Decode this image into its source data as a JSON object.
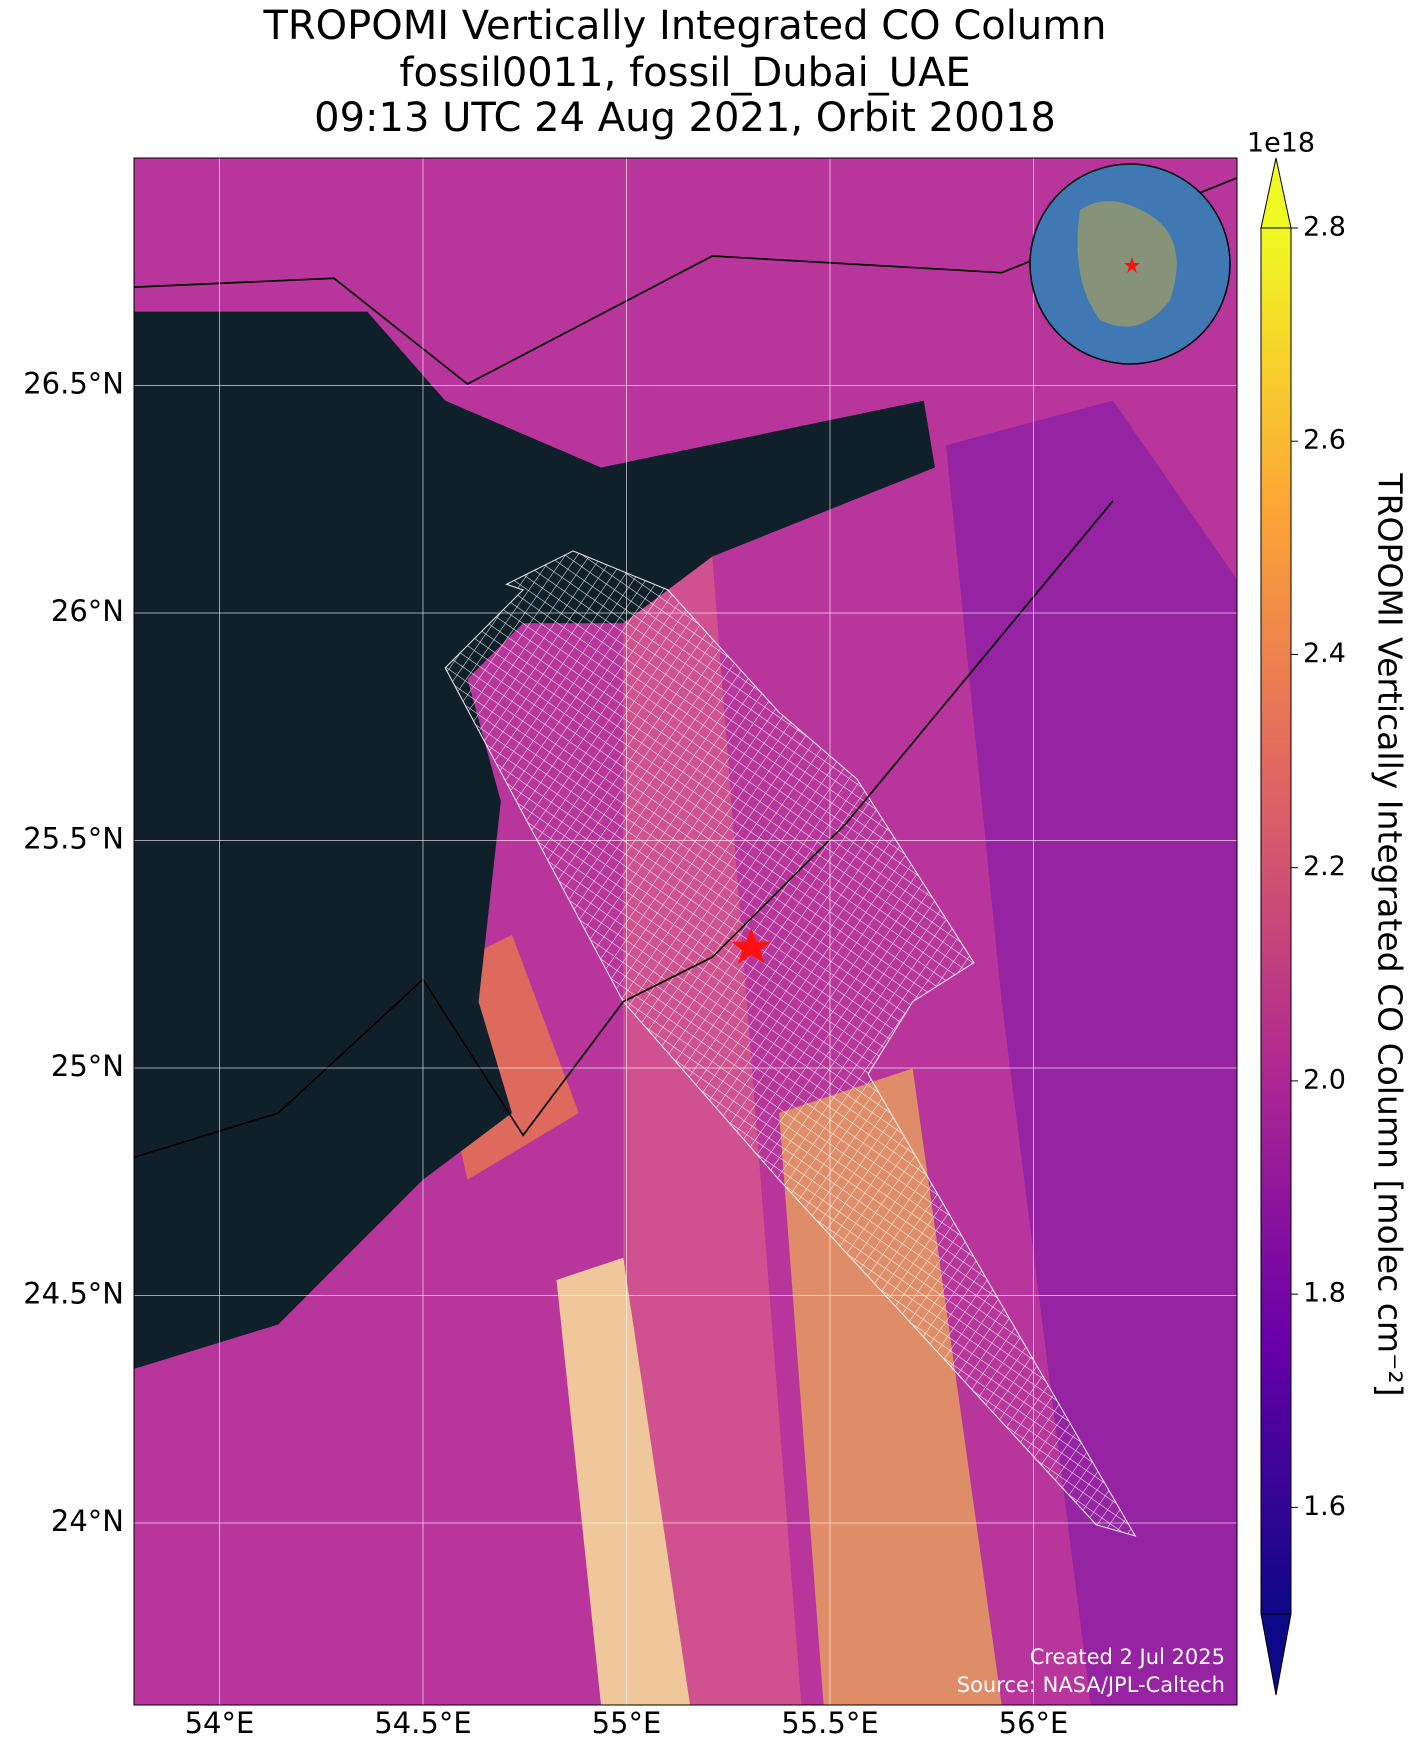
{
  "chart_data": {
    "type": "map",
    "title": [
      "TROPOMI Vertically Integrated CO Column",
      "fossil0011, fossil_Dubai_UAE",
      "09:13 UTC 24 Aug 2021, Orbit 20018"
    ],
    "xlim": [
      53.79,
      56.5
    ],
    "ylim": [
      23.6,
      27.0
    ],
    "xticks": [
      {
        "value": 54,
        "label": "54°E"
      },
      {
        "value": 54.5,
        "label": "54.5°E"
      },
      {
        "value": 55,
        "label": "55°E"
      },
      {
        "value": 55.5,
        "label": "55.5°E"
      },
      {
        "value": 56,
        "label": "56°E"
      }
    ],
    "yticks": [
      {
        "value": 24,
        "label": "24°N"
      },
      {
        "value": 24.5,
        "label": "24.5°N"
      },
      {
        "value": 25,
        "label": "25°N"
      },
      {
        "value": 25.5,
        "label": "25.5°N"
      },
      {
        "value": 26,
        "label": "26°N"
      },
      {
        "value": 26.5,
        "label": "26.5°N"
      }
    ],
    "grid": true,
    "colorbar": {
      "label": "TROPOMI Vertically Integrated CO Column [molec cm⁻²]",
      "offset_text": "1e18",
      "clim": [
        1.5,
        2.8
      ],
      "ticks": [
        1.6,
        1.8,
        {
          "value": 2,
          "label": "2.0"
        },
        2.2,
        2.4,
        2.6,
        2.8
      ],
      "colormap": [
        "#0d0887",
        "#6a00a8",
        "#b12a90",
        "#e16462",
        "#fca636",
        "#f0f921"
      ],
      "extend": "both"
    },
    "notes": [
      "Created 2 Jul 2025",
      "Source: NASA/JPL-Caltech"
    ]
  }
}
